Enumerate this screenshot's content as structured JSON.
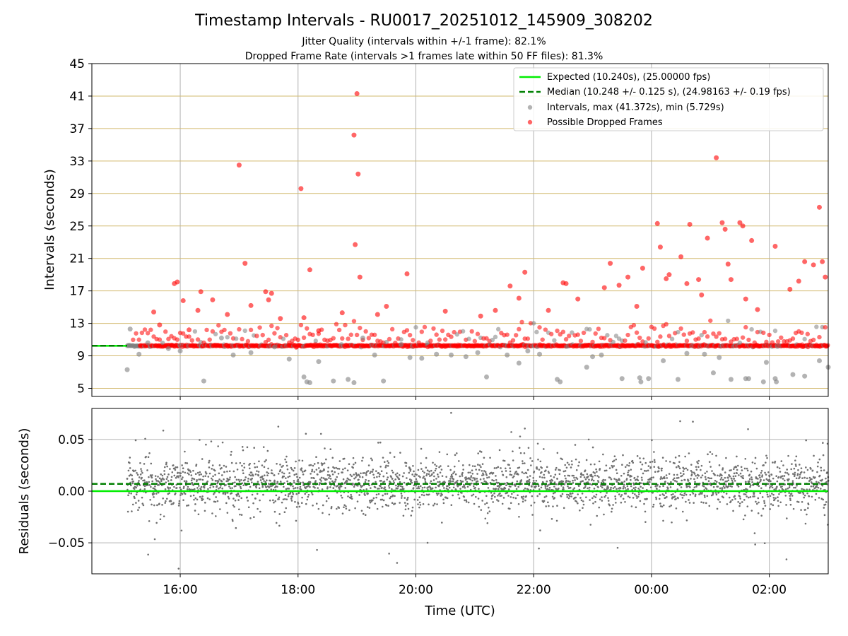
{
  "figure": {
    "title": "Timestamp Intervals - RU0017_20251012_145909_308202",
    "subtitle_1": "Jitter Quality (intervals within +/-1 frame): 82.1%",
    "subtitle_2": "Dropped Frame Rate (intervals >1 frames late within 50 FF files): 81.3%"
  },
  "colors": {
    "expected": "#00ee00",
    "median": "#008000",
    "intervals": "#808080",
    "dropped": "#ff0000",
    "grid": "#b0b0b0",
    "hgrid_top": "#d2b96e",
    "residuals": "#707070"
  },
  "chart_data": [
    {
      "type": "scatter",
      "name": "intervals-panel",
      "ylabel": "Intervals (seconds)",
      "xlabel": "",
      "xlim_hours": [
        14.5,
        27.0
      ],
      "ylim": [
        4,
        45
      ],
      "yticks": [
        5,
        9,
        13,
        17,
        21,
        25,
        29,
        33,
        37,
        41,
        45
      ],
      "xticks": [
        16,
        18,
        20,
        22,
        24,
        26
      ],
      "legend": {
        "placement": "top-right",
        "expected_label": "Expected (10.240s), (25.00000 fps)",
        "median_label": "Median (10.248 +/- 0.125 s), (24.98163 +/- 0.19 fps)",
        "intervals_label": "Intervals, max (41.372s), min (5.729s)",
        "dropped_label": "Possible Dropped Frames"
      },
      "expected_value": 10.24,
      "median_value": 10.248,
      "baseline_range_hours": [
        15.1,
        27.0
      ],
      "series": [
        {
          "name": "Intervals",
          "x": [
            15.1,
            15.15,
            15.3,
            15.45,
            15.8,
            16.0,
            16.4,
            16.7,
            16.9,
            17.2,
            17.6,
            17.85,
            18.1,
            18.15,
            18.2,
            18.35,
            18.6,
            18.85,
            18.95,
            19.1,
            19.3,
            19.45,
            19.75,
            19.9,
            20.1,
            20.35,
            20.6,
            20.85,
            21.05,
            21.2,
            21.55,
            21.75,
            21.9,
            22.1,
            22.4,
            22.45,
            22.9,
            23.0,
            23.15,
            23.5,
            23.8,
            23.82,
            23.95,
            24.2,
            24.45,
            24.6,
            24.9,
            25.05,
            25.15,
            25.35,
            25.6,
            25.65,
            25.9,
            25.95,
            26.1,
            26.12,
            26.4,
            26.6,
            26.85,
            27.0
          ],
          "y": [
            7.3,
            12.3,
            9.2,
            10.6,
            9.9,
            9.6,
            5.9,
            11.2,
            9.1,
            9.4,
            10.1,
            8.6,
            6.4,
            5.8,
            5.7,
            8.3,
            5.9,
            6.1,
            5.7,
            11.2,
            9.1,
            5.9,
            10.4,
            8.8,
            8.7,
            9.2,
            9.1,
            8.9,
            9.4,
            6.4,
            9.1,
            8.1,
            9.6,
            9.2,
            6.1,
            5.8,
            7.6,
            8.9,
            9.1,
            6.2,
            6.3,
            5.8,
            6.2,
            8.4,
            6.1,
            9.3,
            9.2,
            6.9,
            8.8,
            6.1,
            6.2,
            6.2,
            5.8,
            8.2,
            6.2,
            5.8,
            6.7,
            6.5,
            8.4,
            7.6
          ]
        },
        {
          "name": "Possible Dropped Frames",
          "x": [
            15.55,
            15.65,
            15.9,
            15.95,
            16.05,
            16.15,
            16.3,
            16.35,
            16.55,
            16.8,
            17.0,
            17.1,
            17.2,
            17.45,
            17.5,
            17.55,
            17.7,
            18.05,
            18.1,
            18.2,
            18.35,
            18.75,
            18.95,
            18.97,
            19.0,
            19.02,
            19.05,
            19.35,
            19.5,
            19.85,
            20.5,
            21.1,
            21.35,
            21.6,
            21.75,
            21.85,
            22.25,
            22.5,
            22.55,
            22.75,
            23.2,
            23.3,
            23.45,
            23.6,
            23.75,
            23.85,
            24.1,
            24.15,
            24.25,
            24.3,
            24.5,
            24.6,
            24.65,
            24.8,
            24.85,
            24.95,
            25.1,
            25.2,
            25.25,
            25.3,
            25.35,
            25.5,
            25.55,
            25.6,
            25.7,
            25.8,
            26.1,
            26.35,
            26.5,
            26.6,
            26.75,
            26.85,
            26.9,
            26.95
          ],
          "y": [
            14.4,
            12.8,
            17.9,
            18.1,
            15.8,
            12.2,
            14.6,
            16.9,
            15.9,
            14.1,
            32.5,
            20.4,
            15.2,
            16.9,
            15.9,
            16.7,
            13.6,
            29.6,
            13.7,
            19.6,
            12.1,
            14.3,
            36.2,
            22.7,
            41.3,
            31.4,
            18.7,
            14.1,
            15.1,
            19.1,
            14.5,
            13.9,
            14.6,
            17.6,
            16.1,
            19.3,
            14.6,
            18.0,
            17.9,
            16.0,
            17.4,
            20.4,
            17.7,
            18.7,
            15.1,
            19.8,
            25.3,
            22.4,
            18.5,
            19.0,
            21.2,
            17.9,
            25.2,
            18.4,
            16.5,
            23.5,
            33.4,
            25.4,
            24.6,
            20.3,
            18.4,
            25.4,
            25.0,
            16.0,
            23.2,
            14.7,
            22.5,
            17.2,
            18.2,
            20.6,
            20.2,
            27.3,
            20.6,
            18.7
          ]
        }
      ]
    },
    {
      "type": "scatter",
      "name": "residuals-panel",
      "ylabel": "Residuals (seconds)",
      "xlabel": "Time (UTC)",
      "xlim_hours": [
        14.5,
        27.0
      ],
      "ylim": [
        -0.08,
        0.08
      ],
      "yticks": [
        0.05,
        0.0,
        -0.05
      ],
      "ytick_labels": [
        "0.05",
        "0.00",
        "−0.05"
      ],
      "xticks": [
        16,
        18,
        20,
        22,
        24,
        26
      ],
      "xtick_labels": [
        "16:00",
        "18:00",
        "20:00",
        "22:00",
        "00:00",
        "02:00"
      ],
      "expected_value": 0.0,
      "median_value": 0.007,
      "series": [
        {
          "name": "Residuals",
          "x": [
            15.1,
            15.2,
            15.4,
            15.6,
            15.8,
            16.0,
            16.2,
            16.4,
            16.6,
            16.8,
            17.0,
            17.2,
            17.4,
            17.6,
            17.8,
            18.0,
            18.2,
            18.4,
            18.6,
            18.8,
            19.0,
            19.2,
            19.4,
            19.6,
            19.8,
            20.0,
            20.2,
            20.4,
            20.6,
            20.8,
            21.0,
            21.2,
            21.4,
            21.6,
            21.8,
            22.0,
            22.2,
            22.4,
            22.6,
            22.8,
            23.0,
            23.2,
            23.4,
            23.6,
            23.8,
            24.0,
            24.2,
            24.4,
            24.6,
            24.8,
            25.0,
            25.2,
            25.4,
            25.6,
            25.8,
            26.0,
            26.2,
            26.4,
            26.6,
            26.8,
            27.0
          ],
          "y": [
            0.012,
            0.02,
            0.005,
            0.01,
            0.003,
            0.015,
            0.008,
            0.0,
            0.01,
            0.012,
            0.006,
            0.018,
            0.004,
            0.009,
            0.002,
            0.011,
            0.007,
            0.013,
            0.003,
            0.008,
            0.015,
            0.01,
            0.005,
            0.012,
            0.0,
            0.009,
            0.02,
            0.006,
            0.014,
            0.004,
            0.011,
            0.008,
            0.002,
            0.016,
            0.007,
            0.01,
            0.005,
            0.012,
            0.003,
            0.009,
            0.014,
            0.006,
            0.011,
            0.002,
            0.008,
            0.013,
            0.005,
            0.01,
            0.004,
            0.015,
            0.007,
            0.003,
            0.012,
            0.009,
            0.006,
            0.011,
            0.004,
            0.008,
            0.013,
            0.005,
            0.01
          ]
        }
      ]
    }
  ]
}
